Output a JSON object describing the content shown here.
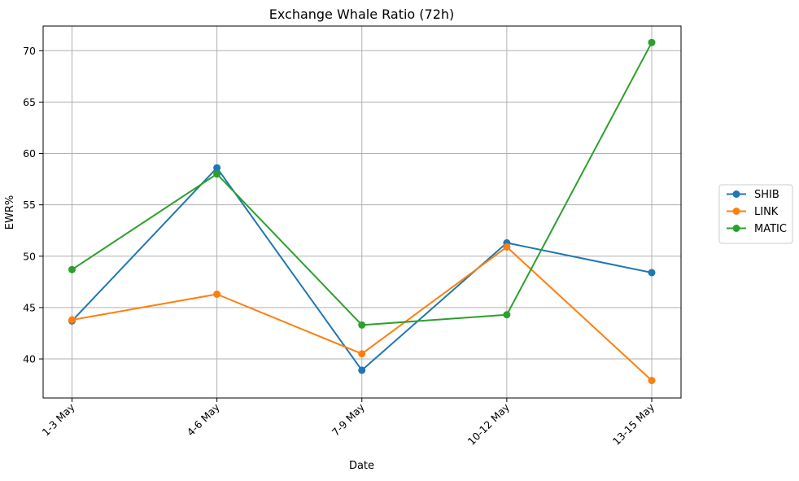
{
  "chart_data": {
    "type": "line",
    "title": "Exchange Whale Ratio (72h)",
    "xlabel": "Date",
    "ylabel": "EWR%",
    "categories": [
      "1-3 May",
      "4-6 May",
      "7-9 May",
      "10-12 May",
      "13-15 May"
    ],
    "ylim": [
      36.2,
      72.4
    ],
    "yticks": [
      40,
      45,
      50,
      55,
      60,
      65,
      70
    ],
    "grid": true,
    "legend_position": "right",
    "series": [
      {
        "name": "SHIB",
        "color": "#1f77b4",
        "values": [
          43.7,
          58.6,
          38.9,
          51.3,
          48.4
        ]
      },
      {
        "name": "LINK",
        "color": "#ff7f0e",
        "values": [
          43.8,
          46.3,
          40.5,
          50.9,
          37.9
        ]
      },
      {
        "name": "MATIC",
        "color": "#2ca02c",
        "values": [
          48.7,
          58.0,
          43.3,
          44.3,
          70.8
        ]
      }
    ]
  }
}
